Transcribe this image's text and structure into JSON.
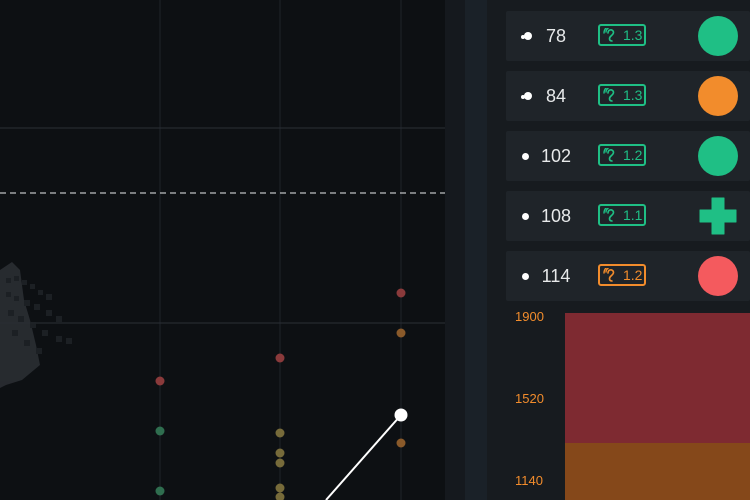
{
  "colors": {
    "accent_green": "#1fbf85",
    "accent_orange": "#f28c2c",
    "alert_red": "#f45a5e",
    "bar_red": "#7e2a31",
    "bar_orange": "#85481a"
  },
  "rows": [
    {
      "value": "78",
      "lead": "double-dot",
      "badge": "1.3",
      "badge_icon": "ear-icon",
      "badge_color": "green",
      "status": "green-circle"
    },
    {
      "value": "84",
      "lead": "double-dot",
      "badge": "1.3",
      "badge_icon": "ear-icon",
      "badge_color": "green",
      "status": "orange-circle"
    },
    {
      "value": "102",
      "lead": "single-dot",
      "badge": "1.2",
      "badge_icon": "ear-icon",
      "badge_color": "green",
      "status": "green-circle"
    },
    {
      "value": "108",
      "lead": "single-dot",
      "badge": "1.1",
      "badge_icon": "ear-icon",
      "badge_color": "green",
      "status": "green-cross"
    },
    {
      "value": "114",
      "lead": "single-dot",
      "badge": "1.2",
      "badge_icon": "ear-icon",
      "badge_color": "orange",
      "status": "red-circle"
    }
  ],
  "y_axis_labels": [
    "1900",
    "1520",
    "1140"
  ]
}
